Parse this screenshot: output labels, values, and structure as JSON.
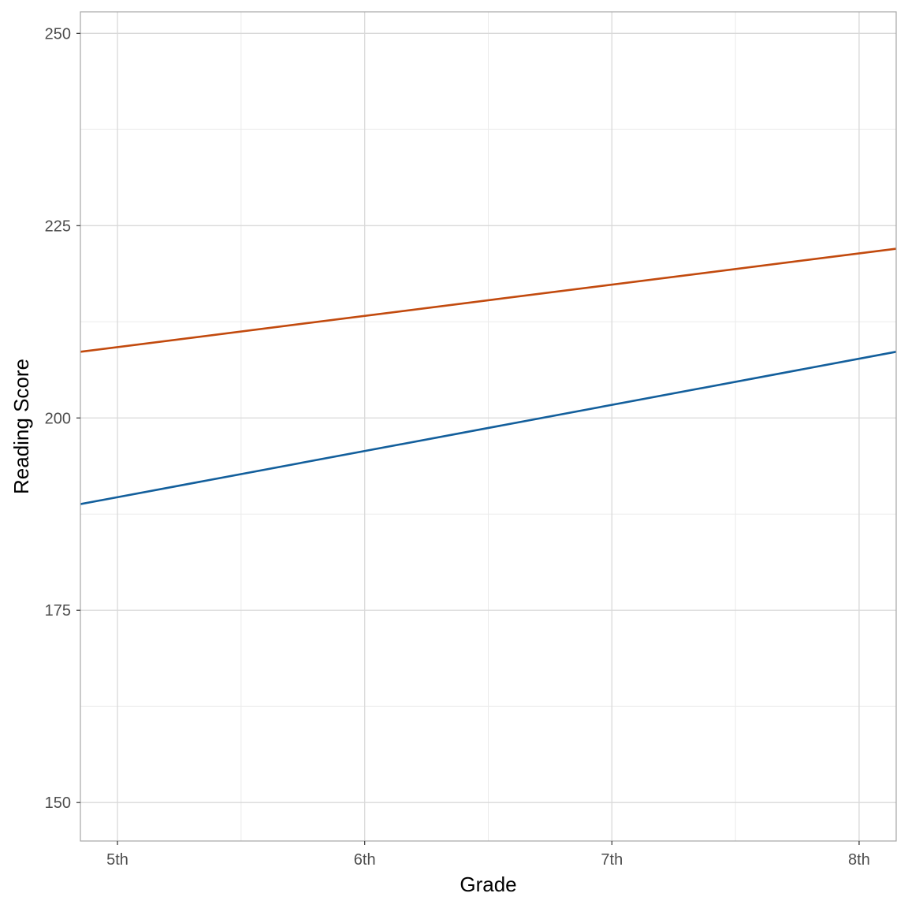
{
  "chart_data": {
    "type": "line",
    "xlabel": "Grade",
    "ylabel": "Reading Score",
    "x_categories": [
      "5th",
      "6th",
      "7th",
      "8th"
    ],
    "x_positions": [
      5,
      6,
      7,
      8
    ],
    "xlim": [
      4.85,
      8.15
    ],
    "ylim": [
      145,
      252.8
    ],
    "y_ticks": [
      150,
      175,
      200,
      225,
      250
    ],
    "y_minor_ticks": [
      162.5,
      187.5,
      212.5,
      237.5
    ],
    "x_minor_ticks": [
      5.5,
      6.5,
      7.5
    ],
    "grid": true,
    "legend": "none",
    "series": [
      {
        "color": "#C24A0E",
        "x": [
          4.85,
          8.15
        ],
        "y": [
          208.6,
          222.0
        ]
      },
      {
        "color": "#135F9C",
        "x": [
          4.85,
          8.15
        ],
        "y": [
          188.8,
          208.6
        ]
      }
    ]
  }
}
